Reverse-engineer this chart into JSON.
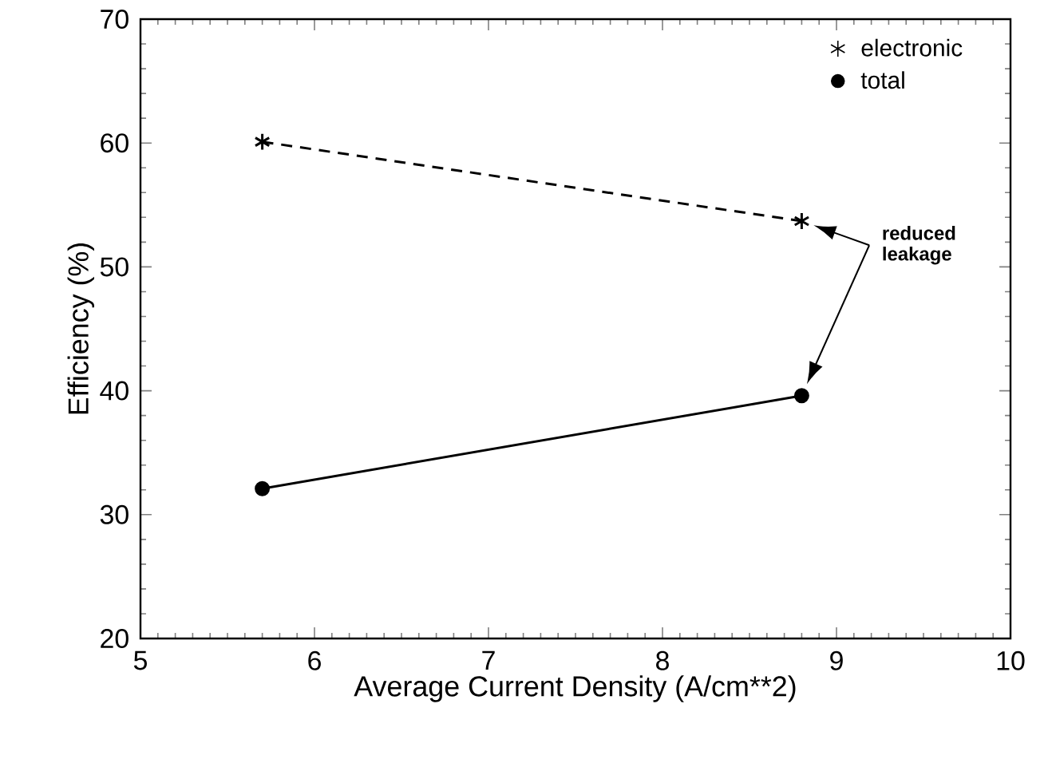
{
  "chart_data": {
    "type": "line",
    "xlabel": "Average Current Density  (A/cm**2)",
    "ylabel": "Efficiency  (%)",
    "x": [
      5.7,
      8.8
    ],
    "series": [
      {
        "name": "electronic",
        "color": "#000000",
        "values": [
          60.1,
          53.7
        ],
        "marker": "cross",
        "line_style": "dashed"
      },
      {
        "name": "total",
        "color": "#000000",
        "values": [
          32.1,
          39.6
        ],
        "marker": "circle",
        "line_style": "solid"
      }
    ],
    "xlim": [
      5,
      10
    ],
    "ylim": [
      20,
      70
    ],
    "xticks": [
      5,
      6,
      7,
      8,
      9,
      10
    ],
    "yticks": [
      20,
      30,
      40,
      50,
      60,
      70
    ],
    "legend": "top right",
    "annotations": [
      "reduced leakage"
    ]
  }
}
